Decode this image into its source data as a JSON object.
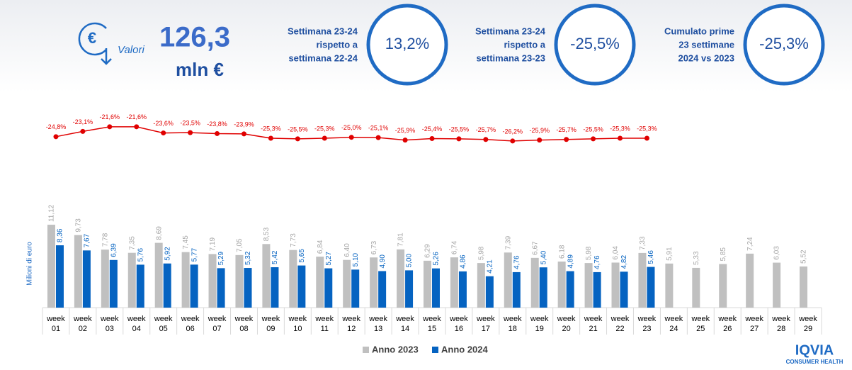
{
  "header": {
    "icon_label": "Valori",
    "total": "126,3",
    "unit": "mln €",
    "kpis": [
      {
        "lines": [
          "Settimana 23-24",
          "rispetto a",
          "settimana 22-24"
        ],
        "value": "13,2%"
      },
      {
        "lines": [
          "Settimana 23-24",
          "rispetto a",
          "settimana 23-23"
        ],
        "value": "-25,5%"
      },
      {
        "lines": [
          "Cumulato prime",
          "23 settimane",
          "2024 vs 2023"
        ],
        "value": "-25,3%"
      }
    ],
    "logo": "IQVIA",
    "logo_sub": "CONSUMER HEALTH"
  },
  "chart_data": {
    "type": "bar",
    "y_label": "Milioni di euro",
    "categories": [
      "week 01",
      "week 02",
      "week 03",
      "week 04",
      "week 05",
      "week 06",
      "week 07",
      "week 08",
      "week 09",
      "week 10",
      "week 11",
      "week 12",
      "week 13",
      "week 14",
      "week 15",
      "week 16",
      "week 17",
      "week 18",
      "week 19",
      "week 20",
      "week 21",
      "week 22",
      "week 23",
      "week 24",
      "week 25",
      "week 26",
      "week 27",
      "week 28",
      "week 29"
    ],
    "ylim": [
      0,
      27
    ],
    "y2lim": [
      -80,
      -15
    ],
    "legend": "bottom",
    "series": [
      {
        "name": "Anno 2023",
        "color": "#c0c0c0",
        "label_color": "#a6a6a6",
        "values": [
          11.12,
          9.73,
          7.78,
          7.35,
          8.69,
          7.45,
          7.19,
          7.05,
          8.53,
          7.73,
          6.84,
          6.4,
          6.73,
          7.81,
          6.29,
          6.74,
          5.98,
          7.39,
          6.67,
          6.18,
          5.98,
          6.04,
          7.33,
          5.91,
          5.33,
          5.85,
          7.24,
          6.03,
          5.52
        ],
        "value_labels": [
          "11,12",
          "9,73",
          "7,78",
          "7,35",
          "8,69",
          "7,45",
          "7,19",
          "7,05",
          "8,53",
          "7,73",
          "6,84",
          "6,40",
          "6,73",
          "7,81",
          "6,29",
          "6,74",
          "5,98",
          "7,39",
          "6,67",
          "6,18",
          "5,98",
          "6,04",
          "7,33",
          "5,91",
          "5,33",
          "5,85",
          "7,24",
          "6,03",
          "5,52"
        ]
      },
      {
        "name": "Anno 2024",
        "color": "#0563c1",
        "label_color": "#0563c1",
        "values": [
          8.36,
          7.67,
          6.39,
          5.76,
          5.92,
          5.77,
          5.29,
          5.32,
          5.42,
          5.65,
          5.27,
          5.1,
          4.9,
          5.0,
          5.26,
          4.86,
          4.21,
          4.76,
          5.4,
          4.89,
          4.76,
          4.82,
          5.46,
          null,
          null,
          null,
          null,
          null,
          null
        ],
        "value_labels": [
          "8,36",
          "7,67",
          "6,39",
          "5,76",
          "5,92",
          "5,77",
          "5,29",
          "5,32",
          "5,42",
          "5,65",
          "5,27",
          "5,10",
          "4,90",
          "5,00",
          "5,26",
          "4,86",
          "4,21",
          "4,76",
          "5,40",
          "4,89",
          "4,76",
          "4,82",
          "5,46",
          null,
          null,
          null,
          null,
          null,
          null
        ]
      },
      {
        "type": "line",
        "axis": "y2",
        "color": "#e00000",
        "values": [
          -24.8,
          -23.1,
          -21.6,
          -21.6,
          -23.6,
          -23.5,
          -23.8,
          -23.9,
          -25.3,
          -25.5,
          -25.3,
          -25.0,
          -25.1,
          -25.9,
          -25.4,
          -25.5,
          -25.7,
          -26.2,
          -25.9,
          -25.7,
          -25.5,
          -25.3,
          -25.3,
          null,
          null,
          null,
          null,
          null,
          null
        ],
        "value_labels": [
          "-24,8%",
          "-23,1%",
          "-21,6%",
          "-21,6%",
          "-23,6%",
          "-23,5%",
          "-23,8%",
          "-23,9%",
          "-25,3%",
          "-25,5%",
          "-25,3%",
          "-25,0%",
          "-25,1%",
          "-25,9%",
          "-25,4%",
          "-25,5%",
          "-25,7%",
          "-26,2%",
          "-25,9%",
          "-25,7%",
          "-25,5%",
          "-25,3%",
          "-25,3%",
          null,
          null,
          null,
          null,
          null,
          null
        ]
      }
    ]
  }
}
